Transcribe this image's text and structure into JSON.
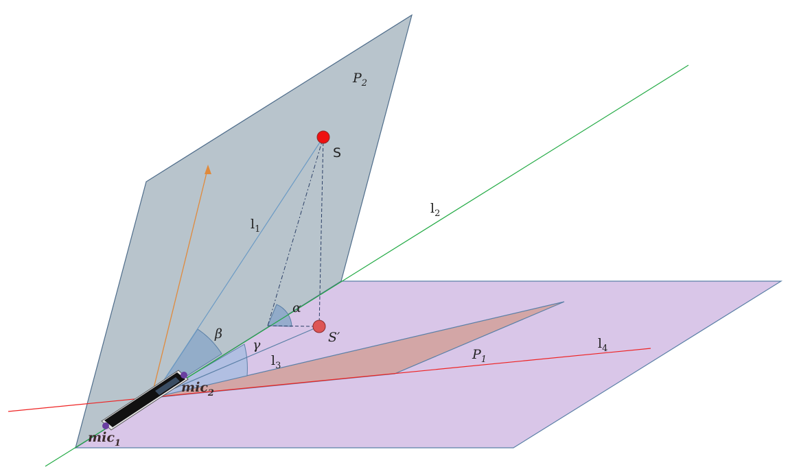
{
  "labels": {
    "p2": {
      "base": "P",
      "sub": "2"
    },
    "p1": {
      "base": "P",
      "sub": "1"
    },
    "s": "S",
    "s_prime": "S′",
    "l1": {
      "base": "l",
      "sub": "1"
    },
    "l2": {
      "base": "l",
      "sub": "2"
    },
    "l3": {
      "base": "l",
      "sub": "3"
    },
    "l4": {
      "base": "l",
      "sub": "4"
    },
    "alpha": "α",
    "beta": "β",
    "gamma": "γ",
    "mic1": {
      "base": "mic",
      "sub": "1"
    },
    "mic2": {
      "base": "mic",
      "sub": "2"
    }
  },
  "colors": {
    "plane_p2": "#b8c4cc",
    "plane_p1": "#d9c6e8",
    "plane_inner": "#d3a6a6",
    "source": "#ee1111",
    "source_projection": "#dd5555",
    "line_l2": "#22aa44",
    "line_l4": "#ee2222",
    "normal_arrow": "#e08a3c",
    "line_l1": "#6b9ac4",
    "mic_dot": "#6a3fa0"
  }
}
